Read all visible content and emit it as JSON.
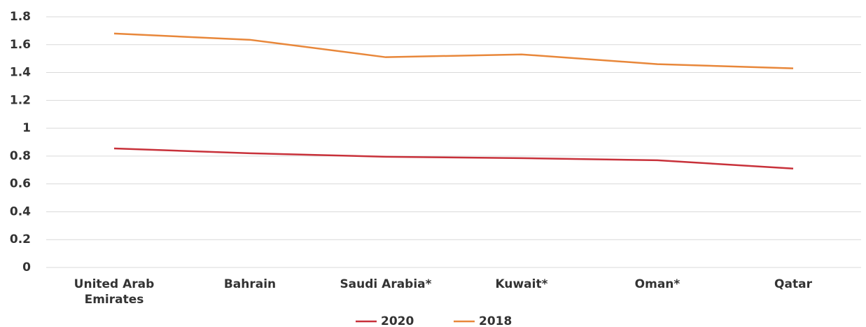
{
  "chart_data": {
    "type": "line",
    "categories": [
      "United Arab Emirates",
      "Bahrain",
      "Saudi Arabia*",
      "Kuwait*",
      "Oman*",
      "Qatar"
    ],
    "series": [
      {
        "name": "2020",
        "color": "#c8313a",
        "values": [
          0.855,
          0.82,
          0.795,
          0.785,
          0.77,
          0.71
        ]
      },
      {
        "name": "2018",
        "color": "#e8873a",
        "values": [
          1.68,
          1.635,
          1.51,
          1.53,
          1.46,
          1.43
        ]
      }
    ],
    "ylim": [
      0,
      1.8
    ],
    "yticks": [
      0,
      0.2,
      0.4,
      0.6,
      0.8,
      1,
      1.2,
      1.4,
      1.6,
      1.8
    ],
    "grid": true,
    "legend": "bottom"
  }
}
